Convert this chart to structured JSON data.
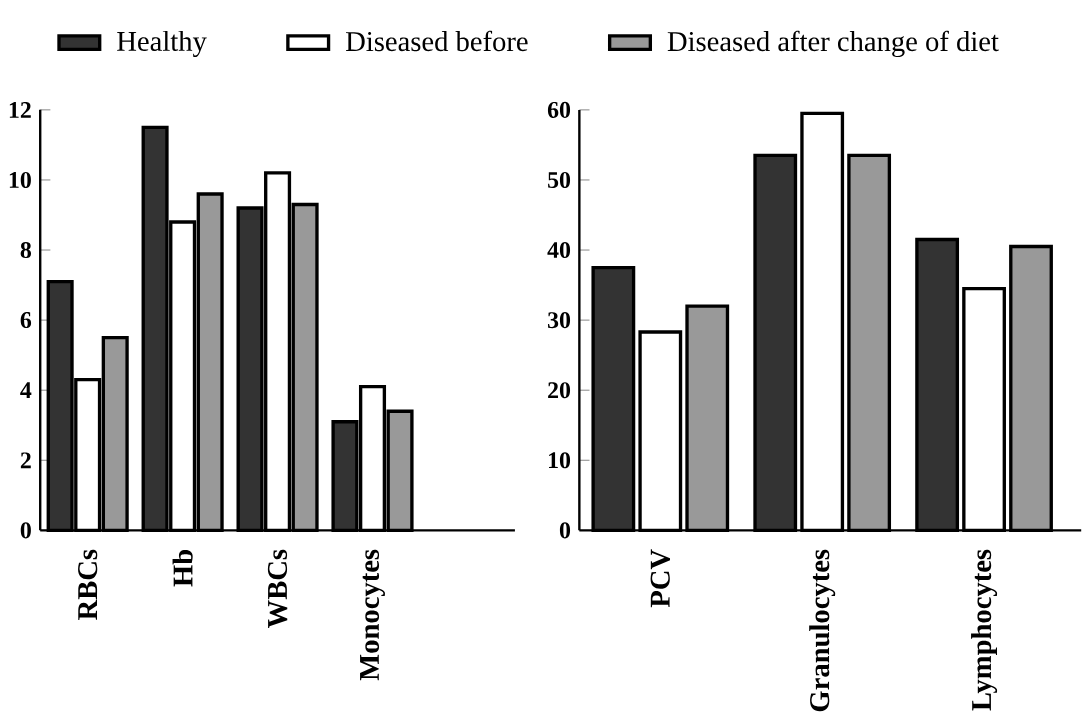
{
  "chart_data": [
    {
      "type": "bar",
      "categories": [
        "RBCs",
        "Hb",
        "WBCs",
        "Monocytes"
      ],
      "ylim": [
        0,
        12
      ],
      "yticks": [
        0,
        2,
        4,
        6,
        8,
        10,
        12
      ],
      "legend": "top",
      "grid": false,
      "series": [
        {
          "name": "Healthy",
          "color": "#333333",
          "values": [
            7.1,
            11.5,
            9.2,
            3.1
          ]
        },
        {
          "name": "Diseased before",
          "color": "#ffffff",
          "values": [
            4.3,
            8.8,
            10.2,
            4.1
          ]
        },
        {
          "name": "Diseased after change of diet",
          "color": "#999999",
          "values": [
            5.5,
            9.6,
            9.3,
            3.4
          ]
        }
      ]
    },
    {
      "type": "bar",
      "categories": [
        "PCV",
        "Granulocytes",
        "Lymphocytes"
      ],
      "ylim": [
        0,
        60
      ],
      "yticks": [
        0,
        10,
        20,
        30,
        40,
        50,
        60
      ],
      "grid": false,
      "series": [
        {
          "color": "#333333",
          "values": [
            37.5,
            53.5,
            41.5
          ]
        },
        {
          "color": "#ffffff",
          "values": [
            28.3,
            59.5,
            34.5
          ]
        },
        {
          "color": "#999999",
          "values": [
            32,
            53.5,
            40.5
          ]
        }
      ]
    }
  ]
}
